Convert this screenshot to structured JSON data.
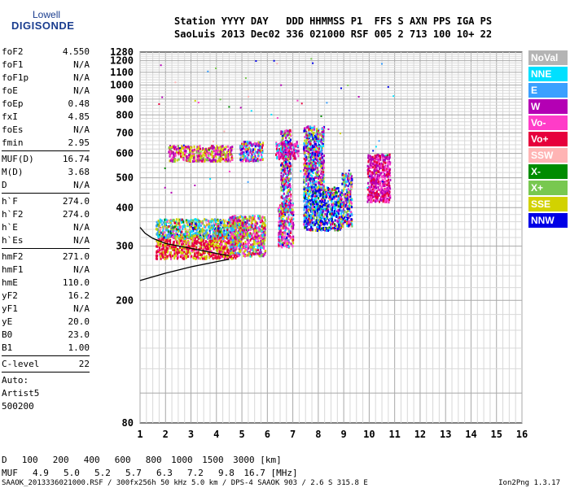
{
  "logo": {
    "line1": "Lowell",
    "line2": "DIGISONDE"
  },
  "header": {
    "labels": "Station YYYY DAY   DDD HHMMSS P1  FFS S AXN PPS IGA PS",
    "values": "SaoLuis 2013 Dec02 336 021000 RSF 005 2 713 100 10+ 22"
  },
  "params": {
    "group1": [
      {
        "name": "foF2",
        "value": "4.550"
      },
      {
        "name": "foF1",
        "value": "N/A"
      },
      {
        "name": "foF1p",
        "value": "N/A"
      },
      {
        "name": "foE",
        "value": "N/A"
      },
      {
        "name": "foEp",
        "value": "0.48"
      },
      {
        "name": "fxI",
        "value": "4.85"
      },
      {
        "name": "foEs",
        "value": "N/A"
      },
      {
        "name": "fmin",
        "value": "2.95"
      }
    ],
    "group2": [
      {
        "name": "MUF(D)",
        "value": "16.74"
      },
      {
        "name": "M(D)",
        "value": "3.68"
      },
      {
        "name": "D",
        "value": "N/A"
      }
    ],
    "group3": [
      {
        "name": "h`F",
        "value": "274.0"
      },
      {
        "name": "h`F2",
        "value": "274.0"
      },
      {
        "name": "h`E",
        "value": "N/A"
      },
      {
        "name": "h`Es",
        "value": "N/A"
      }
    ],
    "group4": [
      {
        "name": "hmF2",
        "value": "271.0"
      },
      {
        "name": "hmF1",
        "value": "N/A"
      },
      {
        "name": "hmE",
        "value": "110.0"
      },
      {
        "name": "yF2",
        "value": "16.2"
      },
      {
        "name": "yF1",
        "value": "N/A"
      },
      {
        "name": "yE",
        "value": "20.0"
      },
      {
        "name": "B0",
        "value": "23.0"
      },
      {
        "name": "B1",
        "value": "1.00"
      }
    ],
    "group5": [
      {
        "name": "C-level",
        "value": "22"
      }
    ],
    "auto": [
      "Auto:",
      "Artist5",
      "500200"
    ]
  },
  "legend": [
    {
      "label": "NoVal",
      "color": "#b4b4b4"
    },
    {
      "label": "NNE",
      "color": "#00e0ff"
    },
    {
      "label": "E",
      "color": "#3aa0ff"
    },
    {
      "label": "W",
      "color": "#b400b4"
    },
    {
      "label": "Vo-",
      "color": "#ff3cc8"
    },
    {
      "label": "Vo+",
      "color": "#e6003c"
    },
    {
      "label": "SSW",
      "color": "#ffb4b4"
    },
    {
      "label": "X-",
      "color": "#008c00"
    },
    {
      "label": "X+",
      "color": "#78c850"
    },
    {
      "label": "SSE",
      "color": "#d2d200"
    },
    {
      "label": "NNW",
      "color": "#0000e6"
    }
  ],
  "chart_data": {
    "type": "scatter",
    "xlim": [
      1,
      16
    ],
    "ylim": [
      80,
      1280
    ],
    "x_ticks": [
      1,
      2,
      3,
      4,
      5,
      6,
      7,
      8,
      9,
      10,
      11,
      12,
      13,
      14,
      15,
      16
    ],
    "y_ticks": [
      80,
      200,
      300,
      400,
      500,
      600,
      700,
      800,
      900,
      1000,
      1100,
      1200,
      1280
    ],
    "y_scale": "log",
    "grid": true,
    "clusters": [
      {
        "x": [
          1.6,
          4.8
        ],
        "y": [
          275,
          330
        ],
        "weights": [
          0,
          0,
          0,
          0,
          1,
          5,
          0,
          0,
          0,
          3,
          0
        ]
      },
      {
        "x": [
          1.6,
          5.2
        ],
        "y": [
          320,
          370
        ],
        "weights": [
          0,
          3,
          3,
          0,
          1,
          1,
          1,
          1,
          3,
          3,
          1
        ]
      },
      {
        "x": [
          4.5,
          5.9
        ],
        "y": [
          280,
          380
        ],
        "weights": [
          0,
          1,
          1,
          2,
          3,
          2,
          0,
          0,
          1,
          3,
          0
        ]
      },
      {
        "x": [
          6.4,
          7.0
        ],
        "y": [
          300,
          420
        ],
        "weights": [
          0,
          2,
          2,
          3,
          4,
          4,
          1,
          0,
          1,
          2,
          1
        ]
      },
      {
        "x": [
          6.5,
          6.9
        ],
        "y": [
          390,
          720
        ],
        "weights": [
          0,
          1,
          1,
          3,
          1,
          1,
          0,
          0,
          1,
          1,
          1
        ]
      },
      {
        "x": [
          7.4,
          8.9
        ],
        "y": [
          340,
          470
        ],
        "weights": [
          0,
          3,
          2,
          1,
          1,
          1,
          0,
          1,
          1,
          2,
          6
        ]
      },
      {
        "x": [
          7.4,
          8.2
        ],
        "y": [
          460,
          740
        ],
        "weights": [
          0,
          1,
          1,
          2,
          1,
          1,
          0,
          0,
          1,
          1,
          2
        ]
      },
      {
        "x": [
          8.9,
          9.3
        ],
        "y": [
          350,
          520
        ],
        "weights": [
          0,
          1,
          1,
          1,
          1,
          1,
          0,
          0,
          1,
          1,
          2
        ]
      },
      {
        "x": [
          2.1,
          4.6
        ],
        "y": [
          570,
          640
        ],
        "weights": [
          0,
          0,
          0,
          3,
          2,
          1,
          0,
          0,
          1,
          3,
          0
        ]
      },
      {
        "x": [
          4.9,
          5.8
        ],
        "y": [
          570,
          660
        ],
        "weights": [
          0,
          1,
          2,
          2,
          1,
          1,
          0,
          0,
          0,
          1,
          1
        ]
      },
      {
        "x": [
          6.3,
          7.2
        ],
        "y": [
          580,
          660
        ],
        "weights": [
          0,
          1,
          0,
          3,
          2,
          2,
          0,
          0,
          0,
          0,
          0
        ]
      },
      {
        "x": [
          9.9,
          10.8
        ],
        "y": [
          420,
          600
        ],
        "weights": [
          0,
          0,
          0,
          3,
          2,
          2,
          0,
          0,
          0,
          0,
          0
        ]
      }
    ],
    "trace_lines": [
      {
        "color": "#000000",
        "points": [
          [
            1.0,
            232
          ],
          [
            2.0,
            245
          ],
          [
            3.0,
            257
          ],
          [
            4.0,
            267
          ],
          [
            4.5,
            272
          ]
        ]
      },
      {
        "color": "#000000",
        "points": [
          [
            1.0,
            345
          ],
          [
            1.2,
            330
          ],
          [
            1.5,
            318
          ],
          [
            2.0,
            306
          ],
          [
            3.0,
            295
          ],
          [
            4.0,
            284
          ],
          [
            4.5,
            279
          ]
        ]
      }
    ],
    "muf_table": {
      "d_label": "D",
      "muf_label": "MUF",
      "d_unit": "[km]",
      "muf_unit": "[MHz]",
      "d_values": [
        "100",
        "200",
        "400",
        "600",
        "800",
        "1000",
        "1500",
        "3000"
      ],
      "muf_values": [
        "4.9",
        "5.0",
        "5.2",
        "5.7",
        "6.3",
        "7.2",
        "9.8",
        "16.7"
      ]
    }
  },
  "footer": {
    "text": "SAAOK_2013336021000.RSF / 300fx256h 50 kHz 5.0 km / DPS-4 SAAOK 903 / 2.6 S 315.8 E",
    "version": "Ion2Png 1.3.17"
  }
}
